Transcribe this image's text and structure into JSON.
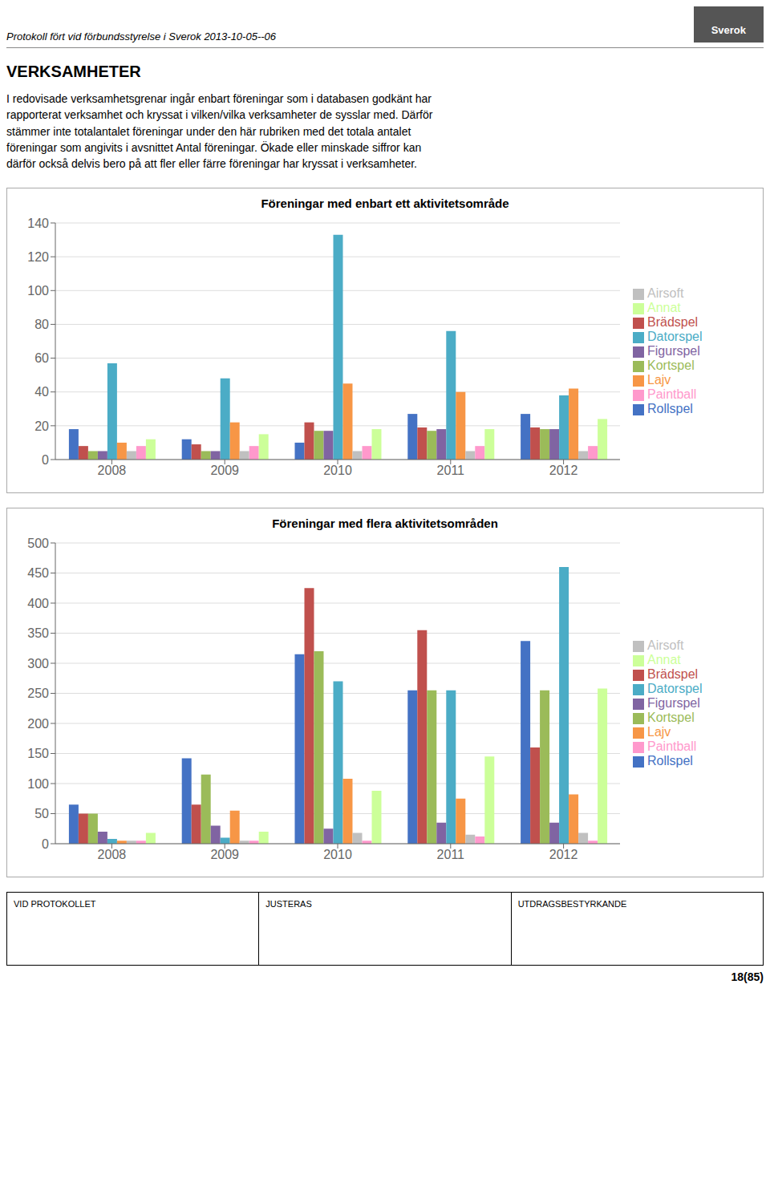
{
  "page_title": "Protokoll fört vid förbundsstyrelse i Sverok 2013-10-05--06",
  "logo": "Sverok",
  "section_title": "VERKSAMHETER",
  "body_text": "I redovisade verksamhetsgrenar ingår enbart föreningar som i databasen godkänt har\nrapporterat verksamhet och kryssat i vilken/vilka verksamheter de sysslar med. Därför\nstämmer inte totalantalet föreningar under den här rubriken med det totala antalet\nföreningar som angivits i avsnittet Antal föreningar. Ökade eller minskade siffror kan\ndärför också delvis bero på att fler eller färre föreningar har kryssat i verksamheter.",
  "footer": [
    "VID PROTOKOLLET",
    "JUSTERAS",
    "UTDRAGSBESTYRKANDE"
  ],
  "page_number": "18(85)",
  "chart_data": [
    {
      "type": "bar",
      "title": "Föreningar med enbart ett aktivitetsområde",
      "categories": [
        "2008",
        "2009",
        "2010",
        "2011",
        "2012"
      ],
      "series": [
        {
          "name": "Rollspel",
          "color": "#4472C4",
          "values": [
            18,
            12,
            10,
            27,
            27
          ]
        },
        {
          "name": "Brädspel",
          "color": "#C0504D",
          "values": [
            8,
            9,
            22,
            19,
            19
          ]
        },
        {
          "name": "Kortspel",
          "color": "#9BBB59",
          "values": [
            5,
            5,
            17,
            17,
            18
          ]
        },
        {
          "name": "Figurspel",
          "color": "#8064A2",
          "values": [
            5,
            5,
            17,
            18,
            18
          ]
        },
        {
          "name": "Datorspel",
          "color": "#4BACC6",
          "values": [
            57,
            48,
            133,
            76,
            38
          ]
        },
        {
          "name": "Lajv",
          "color": "#F79646",
          "values": [
            10,
            22,
            45,
            40,
            42
          ]
        },
        {
          "name": "Airsoft",
          "color": "#C0C0C0",
          "values": [
            5,
            5,
            5,
            5,
            5
          ]
        },
        {
          "name": "Paintball",
          "color": "#FF99CC",
          "values": [
            8,
            8,
            8,
            8,
            8
          ]
        },
        {
          "name": "Annat",
          "color": "#CCFF99",
          "values": [
            12,
            15,
            18,
            18,
            24
          ]
        }
      ],
      "ylim": [
        0,
        140
      ],
      "yticks": [
        0,
        20,
        40,
        60,
        80,
        100,
        120,
        140
      ],
      "grid": true,
      "legend": "right"
    },
    {
      "type": "bar",
      "title": "Föreningar med flera aktivitetsområden",
      "categories": [
        "2008",
        "2009",
        "2010",
        "2011",
        "2012"
      ],
      "series": [
        {
          "name": "Rollspel",
          "color": "#4472C4",
          "values": [
            65,
            142,
            315,
            255,
            337
          ]
        },
        {
          "name": "Brädspel",
          "color": "#C0504D",
          "values": [
            50,
            65,
            425,
            355,
            160
          ]
        },
        {
          "name": "Kortspel",
          "color": "#9BBB59",
          "values": [
            50,
            115,
            320,
            255,
            255
          ]
        },
        {
          "name": "Figurspel",
          "color": "#8064A2",
          "values": [
            20,
            30,
            25,
            35,
            35
          ]
        },
        {
          "name": "Datorspel",
          "color": "#4BACC6",
          "values": [
            8,
            10,
            270,
            255,
            460
          ]
        },
        {
          "name": "Lajv",
          "color": "#F79646",
          "values": [
            5,
            55,
            108,
            75,
            82
          ]
        },
        {
          "name": "Airsoft",
          "color": "#C0C0C0",
          "values": [
            5,
            5,
            18,
            15,
            18
          ]
        },
        {
          "name": "Paintball",
          "color": "#FF99CC",
          "values": [
            5,
            5,
            5,
            12,
            5
          ]
        },
        {
          "name": "Annat",
          "color": "#CCFF99",
          "values": [
            18,
            20,
            88,
            145,
            258
          ]
        }
      ],
      "ylim": [
        0,
        500
      ],
      "yticks": [
        0,
        50,
        100,
        150,
        200,
        250,
        300,
        350,
        400,
        450,
        500
      ],
      "grid": true,
      "legend": "right"
    }
  ]
}
